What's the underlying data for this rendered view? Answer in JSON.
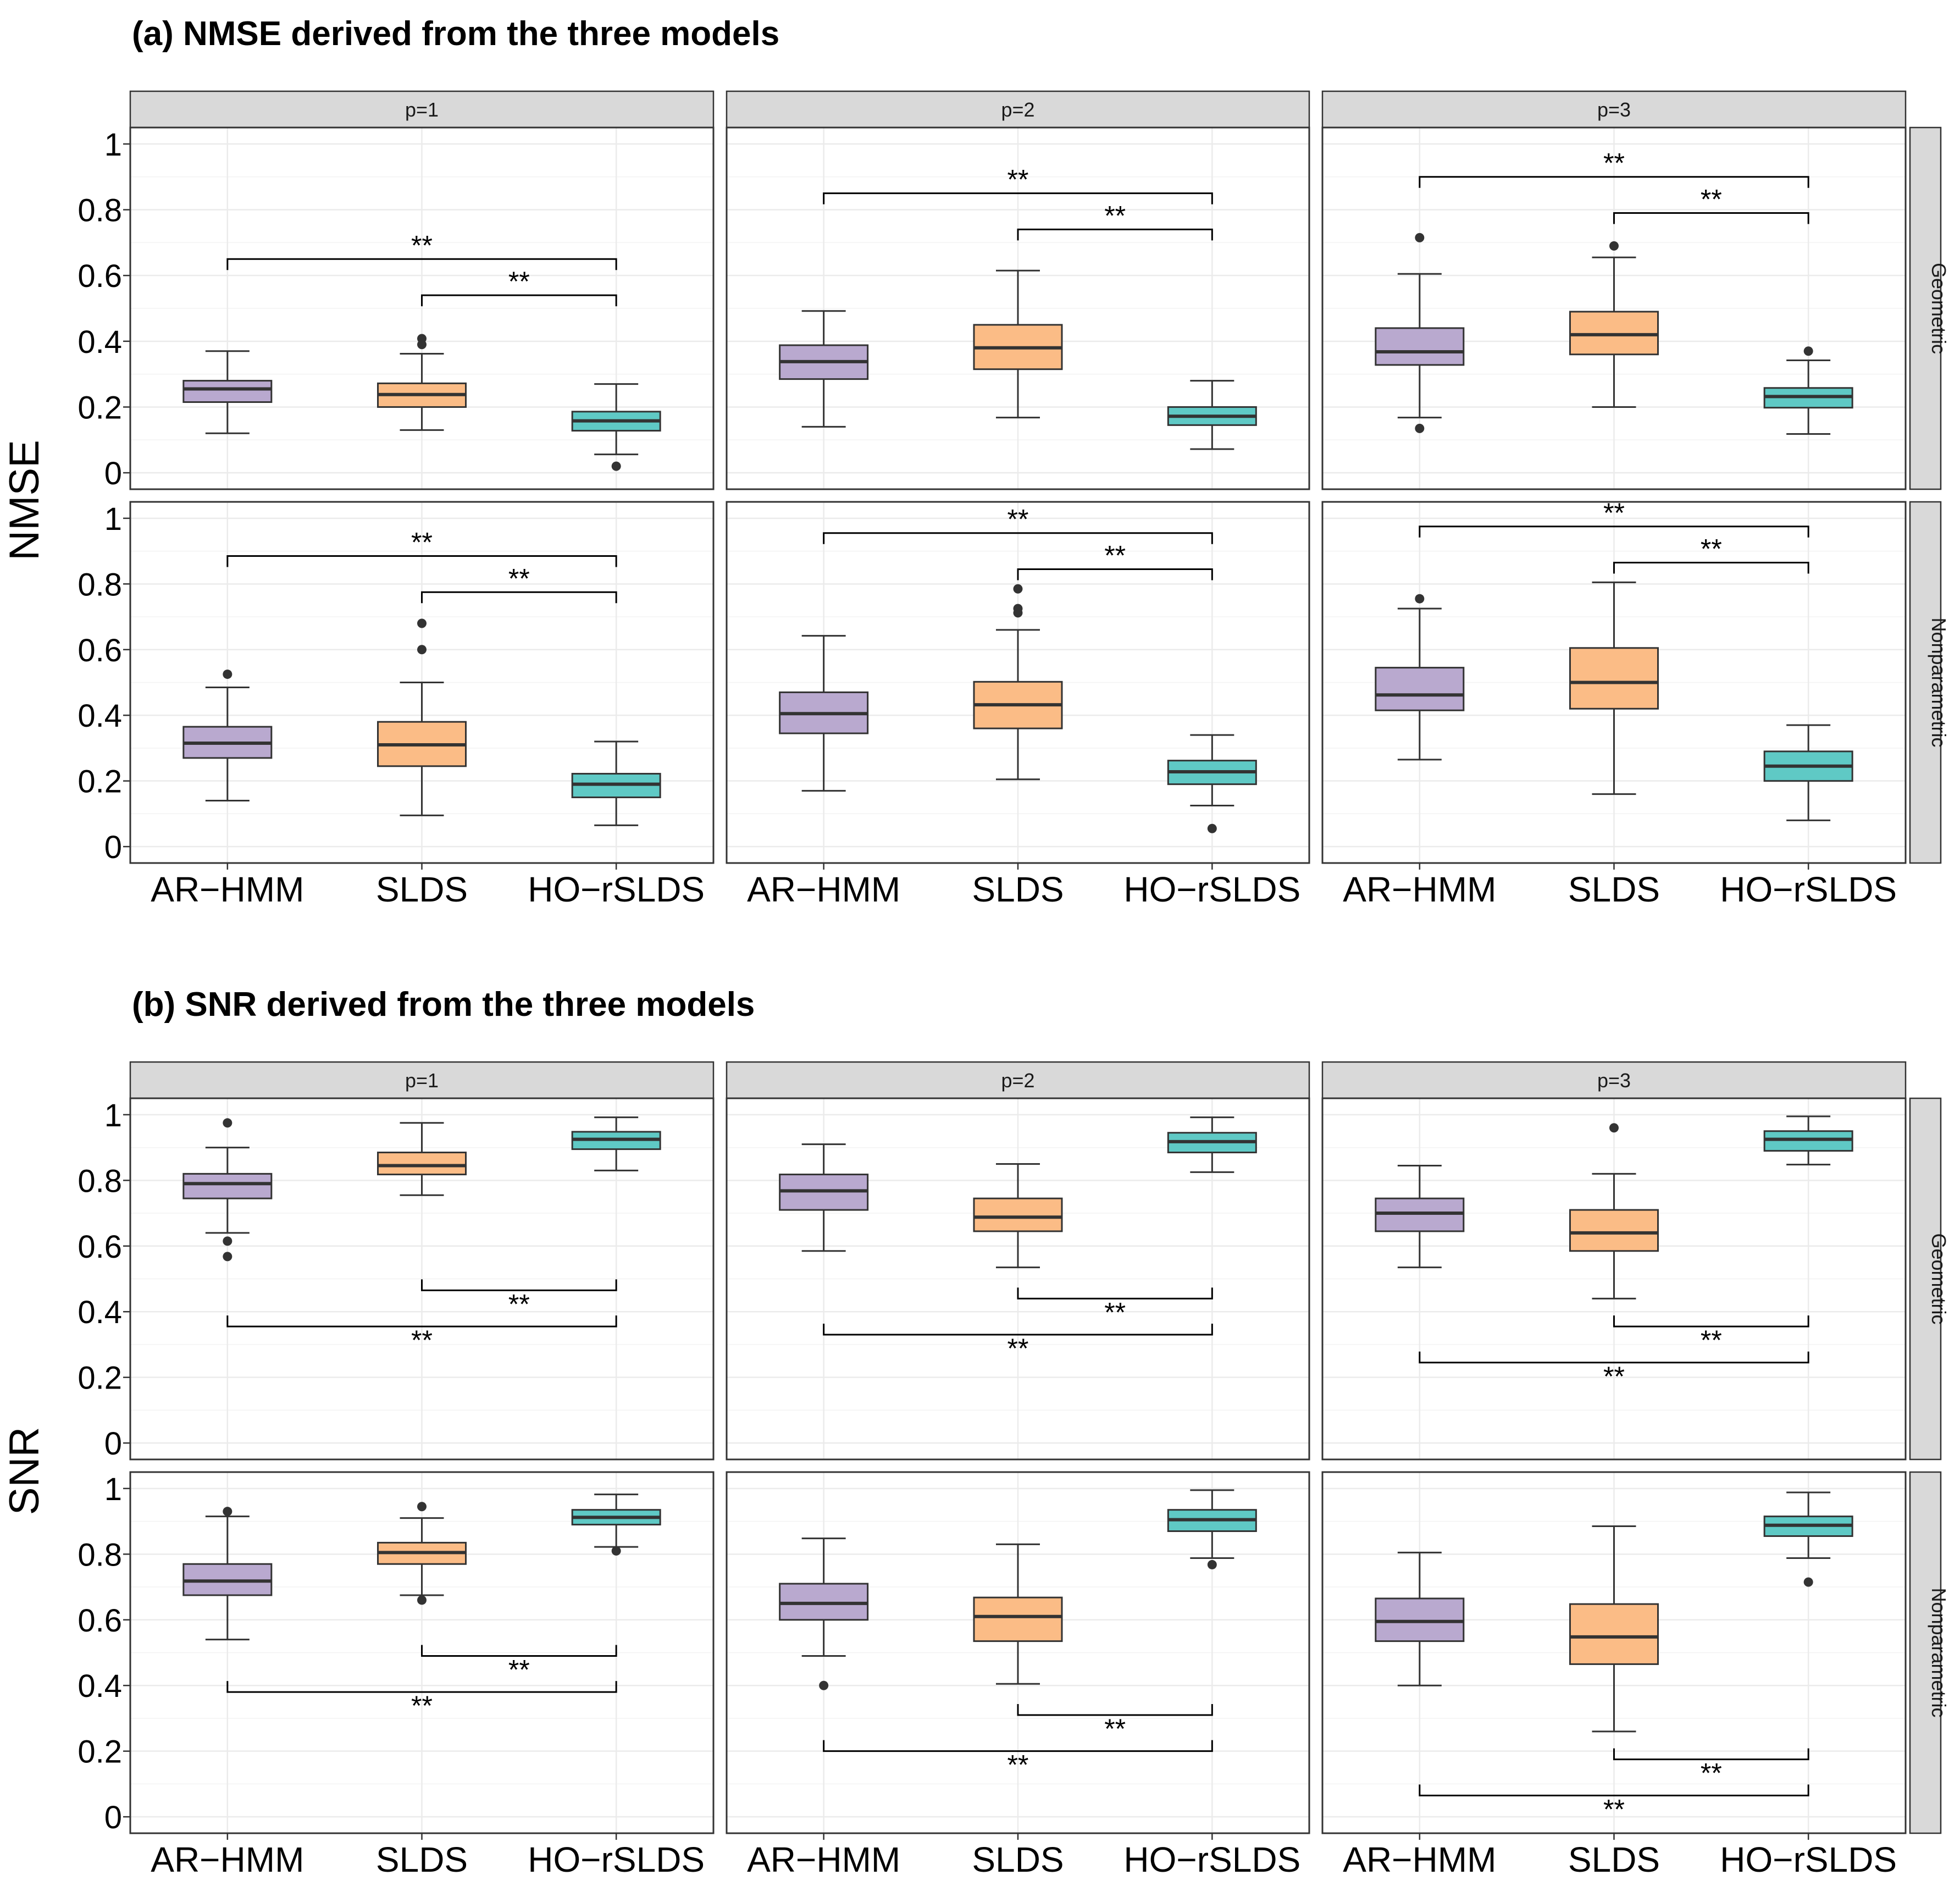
{
  "colors": {
    "AR-HMM": "#b9a9cf",
    "SLDS": "#fbbc86",
    "HO-rSLDS": "#5fc9c5",
    "strip": "#d9d9d9",
    "grid": "#ebebeb"
  },
  "chart_data": [
    {
      "type": "boxplot",
      "title": "(a) NMSE derived from the three models",
      "ylabel": "NMSE",
      "ylim": [
        -0.05,
        1.05
      ],
      "yticks": [
        0,
        0.2,
        0.4,
        0.6,
        0.8,
        1
      ],
      "ytick_labels": [
        "0",
        "0.2",
        "0.4",
        "0.6",
        "0.8",
        "1"
      ],
      "categories": [
        "AR−HMM",
        "SLDS",
        "HO−rSLDS"
      ],
      "columns": [
        "p=1",
        "p=2",
        "p=3"
      ],
      "rows": [
        "Geometric",
        "Nonparametric"
      ],
      "significance_label": "**",
      "panels": [
        {
          "row": "Geometric",
          "col": "p=1",
          "boxes": [
            {
              "category": "AR−HMM",
              "whisker_low": 0.12,
              "q1": 0.215,
              "median": 0.255,
              "q3": 0.28,
              "whisker_high": 0.37,
              "outliers": []
            },
            {
              "category": "SLDS",
              "whisker_low": 0.13,
              "q1": 0.2,
              "median": 0.238,
              "q3": 0.272,
              "whisker_high": 0.362,
              "outliers": [
                0.39,
                0.408
              ]
            },
            {
              "category": "HO−rSLDS",
              "whisker_low": 0.056,
              "q1": 0.128,
              "median": 0.158,
              "q3": 0.186,
              "whisker_high": 0.27,
              "outliers": [
                0.02
              ]
            }
          ],
          "brackets": [
            {
              "from": 0,
              "to": 2,
              "y": 0.65
            },
            {
              "from": 1,
              "to": 2,
              "y": 0.54
            }
          ]
        },
        {
          "row": "Geometric",
          "col": "p=2",
          "boxes": [
            {
              "category": "AR−HMM",
              "whisker_low": 0.14,
              "q1": 0.285,
              "median": 0.338,
              "q3": 0.388,
              "whisker_high": 0.492,
              "outliers": []
            },
            {
              "category": "SLDS",
              "whisker_low": 0.168,
              "q1": 0.315,
              "median": 0.38,
              "q3": 0.45,
              "whisker_high": 0.615,
              "outliers": []
            },
            {
              "category": "HO−rSLDS",
              "whisker_low": 0.072,
              "q1": 0.145,
              "median": 0.172,
              "q3": 0.2,
              "whisker_high": 0.28,
              "outliers": []
            }
          ],
          "brackets": [
            {
              "from": 0,
              "to": 2,
              "y": 0.85
            },
            {
              "from": 1,
              "to": 2,
              "y": 0.74
            }
          ]
        },
        {
          "row": "Geometric",
          "col": "p=3",
          "boxes": [
            {
              "category": "AR−HMM",
              "whisker_low": 0.168,
              "q1": 0.328,
              "median": 0.368,
              "q3": 0.44,
              "whisker_high": 0.605,
              "outliers": [
                0.135,
                0.715
              ]
            },
            {
              "category": "SLDS",
              "whisker_low": 0.2,
              "q1": 0.36,
              "median": 0.42,
              "q3": 0.49,
              "whisker_high": 0.655,
              "outliers": [
                0.69
              ]
            },
            {
              "category": "HO−rSLDS",
              "whisker_low": 0.118,
              "q1": 0.198,
              "median": 0.232,
              "q3": 0.258,
              "whisker_high": 0.342,
              "outliers": [
                0.37
              ]
            }
          ],
          "brackets": [
            {
              "from": 0,
              "to": 2,
              "y": 0.9
            },
            {
              "from": 1,
              "to": 2,
              "y": 0.79
            }
          ]
        },
        {
          "row": "Nonparametric",
          "col": "p=1",
          "boxes": [
            {
              "category": "AR−HMM",
              "whisker_low": 0.14,
              "q1": 0.27,
              "median": 0.315,
              "q3": 0.365,
              "whisker_high": 0.485,
              "outliers": [
                0.525
              ]
            },
            {
              "category": "SLDS",
              "whisker_low": 0.095,
              "q1": 0.245,
              "median": 0.31,
              "q3": 0.38,
              "whisker_high": 0.5,
              "outliers": [
                0.6,
                0.68
              ]
            },
            {
              "category": "HO−rSLDS",
              "whisker_low": 0.065,
              "q1": 0.15,
              "median": 0.19,
              "q3": 0.222,
              "whisker_high": 0.32,
              "outliers": []
            }
          ],
          "brackets": [
            {
              "from": 0,
              "to": 2,
              "y": 0.885
            },
            {
              "from": 1,
              "to": 2,
              "y": 0.775
            }
          ]
        },
        {
          "row": "Nonparametric",
          "col": "p=2",
          "boxes": [
            {
              "category": "AR−HMM",
              "whisker_low": 0.17,
              "q1": 0.345,
              "median": 0.405,
              "q3": 0.47,
              "whisker_high": 0.642,
              "outliers": []
            },
            {
              "category": "SLDS",
              "whisker_low": 0.205,
              "q1": 0.36,
              "median": 0.432,
              "q3": 0.502,
              "whisker_high": 0.66,
              "outliers": [
                0.712,
                0.725,
                0.785
              ]
            },
            {
              "category": "HO−rSLDS",
              "whisker_low": 0.125,
              "q1": 0.19,
              "median": 0.228,
              "q3": 0.262,
              "whisker_high": 0.34,
              "outliers": [
                0.055
              ]
            }
          ],
          "brackets": [
            {
              "from": 0,
              "to": 2,
              "y": 0.955
            },
            {
              "from": 1,
              "to": 2,
              "y": 0.845
            }
          ]
        },
        {
          "row": "Nonparametric",
          "col": "p=3",
          "boxes": [
            {
              "category": "AR−HMM",
              "whisker_low": 0.265,
              "q1": 0.415,
              "median": 0.462,
              "q3": 0.545,
              "whisker_high": 0.725,
              "outliers": [
                0.755
              ]
            },
            {
              "category": "SLDS",
              "whisker_low": 0.16,
              "q1": 0.42,
              "median": 0.5,
              "q3": 0.605,
              "whisker_high": 0.805,
              "outliers": []
            },
            {
              "category": "HO−rSLDS",
              "whisker_low": 0.08,
              "q1": 0.2,
              "median": 0.245,
              "q3": 0.29,
              "whisker_high": 0.37,
              "outliers": []
            }
          ],
          "brackets": [
            {
              "from": 0,
              "to": 2,
              "y": 0.975
            },
            {
              "from": 1,
              "to": 2,
              "y": 0.865
            }
          ]
        }
      ]
    },
    {
      "type": "boxplot",
      "title": "(b) SNR derived from the three models",
      "ylabel": "SNR",
      "ylim": [
        -0.05,
        1.05
      ],
      "yticks": [
        0,
        0.2,
        0.4,
        0.6,
        0.8,
        1
      ],
      "ytick_labels": [
        "0",
        "0.2",
        "0.4",
        "0.6",
        "0.8",
        "1"
      ],
      "categories": [
        "AR−HMM",
        "SLDS",
        "HO−rSLDS"
      ],
      "columns": [
        "p=1",
        "p=2",
        "p=3"
      ],
      "rows": [
        "Geometric",
        "Nonparametric"
      ],
      "significance_label": "**",
      "panels": [
        {
          "row": "Geometric",
          "col": "p=1",
          "boxes": [
            {
              "category": "AR−HMM",
              "whisker_low": 0.64,
              "q1": 0.745,
              "median": 0.79,
              "q3": 0.82,
              "whisker_high": 0.9,
              "outliers": [
                0.568,
                0.615,
                0.975
              ]
            },
            {
              "category": "SLDS",
              "whisker_low": 0.755,
              "q1": 0.818,
              "median": 0.845,
              "q3": 0.885,
              "whisker_high": 0.975,
              "outliers": []
            },
            {
              "category": "HO−rSLDS",
              "whisker_low": 0.83,
              "q1": 0.895,
              "median": 0.925,
              "q3": 0.948,
              "whisker_high": 0.992,
              "outliers": []
            }
          ],
          "brackets": [
            {
              "from": 0,
              "to": 2,
              "y": 0.355,
              "dir": "up"
            },
            {
              "from": 1,
              "to": 2,
              "y": 0.465,
              "dir": "up"
            }
          ]
        },
        {
          "row": "Geometric",
          "col": "p=2",
          "boxes": [
            {
              "category": "AR−HMM",
              "whisker_low": 0.585,
              "q1": 0.71,
              "median": 0.768,
              "q3": 0.818,
              "whisker_high": 0.91,
              "outliers": []
            },
            {
              "category": "SLDS",
              "whisker_low": 0.535,
              "q1": 0.645,
              "median": 0.688,
              "q3": 0.745,
              "whisker_high": 0.85,
              "outliers": []
            },
            {
              "category": "HO−rSLDS",
              "whisker_low": 0.825,
              "q1": 0.885,
              "median": 0.918,
              "q3": 0.945,
              "whisker_high": 0.992,
              "outliers": []
            }
          ],
          "brackets": [
            {
              "from": 0,
              "to": 2,
              "y": 0.33,
              "dir": "up"
            },
            {
              "from": 1,
              "to": 2,
              "y": 0.44,
              "dir": "up"
            }
          ]
        },
        {
          "row": "Geometric",
          "col": "p=3",
          "boxes": [
            {
              "category": "AR−HMM",
              "whisker_low": 0.535,
              "q1": 0.645,
              "median": 0.7,
              "q3": 0.745,
              "whisker_high": 0.845,
              "outliers": []
            },
            {
              "category": "SLDS",
              "whisker_low": 0.44,
              "q1": 0.585,
              "median": 0.64,
              "q3": 0.71,
              "whisker_high": 0.82,
              "outliers": [
                0.96
              ]
            },
            {
              "category": "HO−rSLDS",
              "whisker_low": 0.848,
              "q1": 0.89,
              "median": 0.925,
              "q3": 0.95,
              "whisker_high": 0.995,
              "outliers": []
            }
          ],
          "brackets": [
            {
              "from": 0,
              "to": 2,
              "y": 0.245,
              "dir": "up"
            },
            {
              "from": 1,
              "to": 2,
              "y": 0.355,
              "dir": "up"
            }
          ]
        },
        {
          "row": "Nonparametric",
          "col": "p=1",
          "boxes": [
            {
              "category": "AR−HMM",
              "whisker_low": 0.54,
              "q1": 0.675,
              "median": 0.718,
              "q3": 0.77,
              "whisker_high": 0.915,
              "outliers": [
                0.93
              ]
            },
            {
              "category": "SLDS",
              "whisker_low": 0.675,
              "q1": 0.77,
              "median": 0.805,
              "q3": 0.835,
              "whisker_high": 0.91,
              "outliers": [
                0.66,
                0.945
              ]
            },
            {
              "category": "HO−rSLDS",
              "whisker_low": 0.822,
              "q1": 0.89,
              "median": 0.912,
              "q3": 0.935,
              "whisker_high": 0.982,
              "outliers": [
                0.81
              ]
            }
          ],
          "brackets": [
            {
              "from": 0,
              "to": 2,
              "y": 0.38,
              "dir": "up"
            },
            {
              "from": 1,
              "to": 2,
              "y": 0.49,
              "dir": "up"
            }
          ]
        },
        {
          "row": "Nonparametric",
          "col": "p=2",
          "boxes": [
            {
              "category": "AR−HMM",
              "whisker_low": 0.49,
              "q1": 0.6,
              "median": 0.65,
              "q3": 0.71,
              "whisker_high": 0.848,
              "outliers": [
                0.4
              ]
            },
            {
              "category": "SLDS",
              "whisker_low": 0.405,
              "q1": 0.535,
              "median": 0.61,
              "q3": 0.668,
              "whisker_high": 0.83,
              "outliers": []
            },
            {
              "category": "HO−rSLDS",
              "whisker_low": 0.788,
              "q1": 0.87,
              "median": 0.905,
              "q3": 0.935,
              "whisker_high": 0.995,
              "outliers": [
                0.768
              ]
            }
          ],
          "brackets": [
            {
              "from": 0,
              "to": 2,
              "y": 0.2,
              "dir": "up"
            },
            {
              "from": 1,
              "to": 2,
              "y": 0.31,
              "dir": "up"
            }
          ]
        },
        {
          "row": "Nonparametric",
          "col": "p=3",
          "boxes": [
            {
              "category": "AR−HMM",
              "whisker_low": 0.4,
              "q1": 0.535,
              "median": 0.595,
              "q3": 0.665,
              "whisker_high": 0.805,
              "outliers": []
            },
            {
              "category": "SLDS",
              "whisker_low": 0.26,
              "q1": 0.465,
              "median": 0.548,
              "q3": 0.648,
              "whisker_high": 0.885,
              "outliers": []
            },
            {
              "category": "HO−rSLDS",
              "whisker_low": 0.788,
              "q1": 0.855,
              "median": 0.888,
              "q3": 0.915,
              "whisker_high": 0.988,
              "outliers": [
                0.715
              ]
            }
          ],
          "brackets": [
            {
              "from": 0,
              "to": 2,
              "y": 0.065,
              "dir": "up"
            },
            {
              "from": 1,
              "to": 2,
              "y": 0.175,
              "dir": "up"
            }
          ]
        }
      ]
    }
  ]
}
